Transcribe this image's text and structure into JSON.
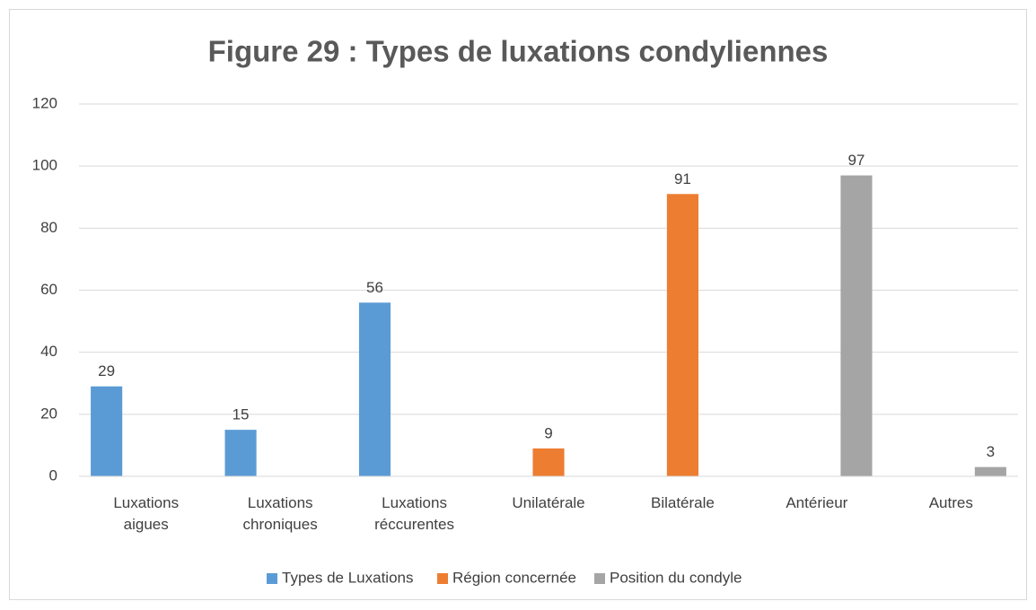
{
  "chart_data": {
    "type": "bar",
    "title": "Figure 29 : Types de luxations condyliennes",
    "categories": [
      "Luxations aigues",
      "Luxations chroniques",
      "Luxations réccurentes",
      "Unilatérale",
      "Bilatérale",
      "Antérieur",
      "Autres"
    ],
    "series": [
      {
        "name": "Types de Luxations",
        "color": "#5b9bd5",
        "values": [
          29,
          15,
          56,
          null,
          null,
          null,
          null
        ]
      },
      {
        "name": "Région concernée",
        "color": "#ed7d31",
        "values": [
          null,
          null,
          null,
          9,
          91,
          null,
          null
        ]
      },
      {
        "name": "Position du condyle",
        "color": "#a5a5a5",
        "values": [
          null,
          null,
          null,
          null,
          null,
          97,
          3
        ]
      }
    ],
    "ylim": [
      0,
      120
    ],
    "yticks": [
      0,
      20,
      40,
      60,
      80,
      100,
      120
    ],
    "grid": true,
    "legend": "bottom"
  }
}
